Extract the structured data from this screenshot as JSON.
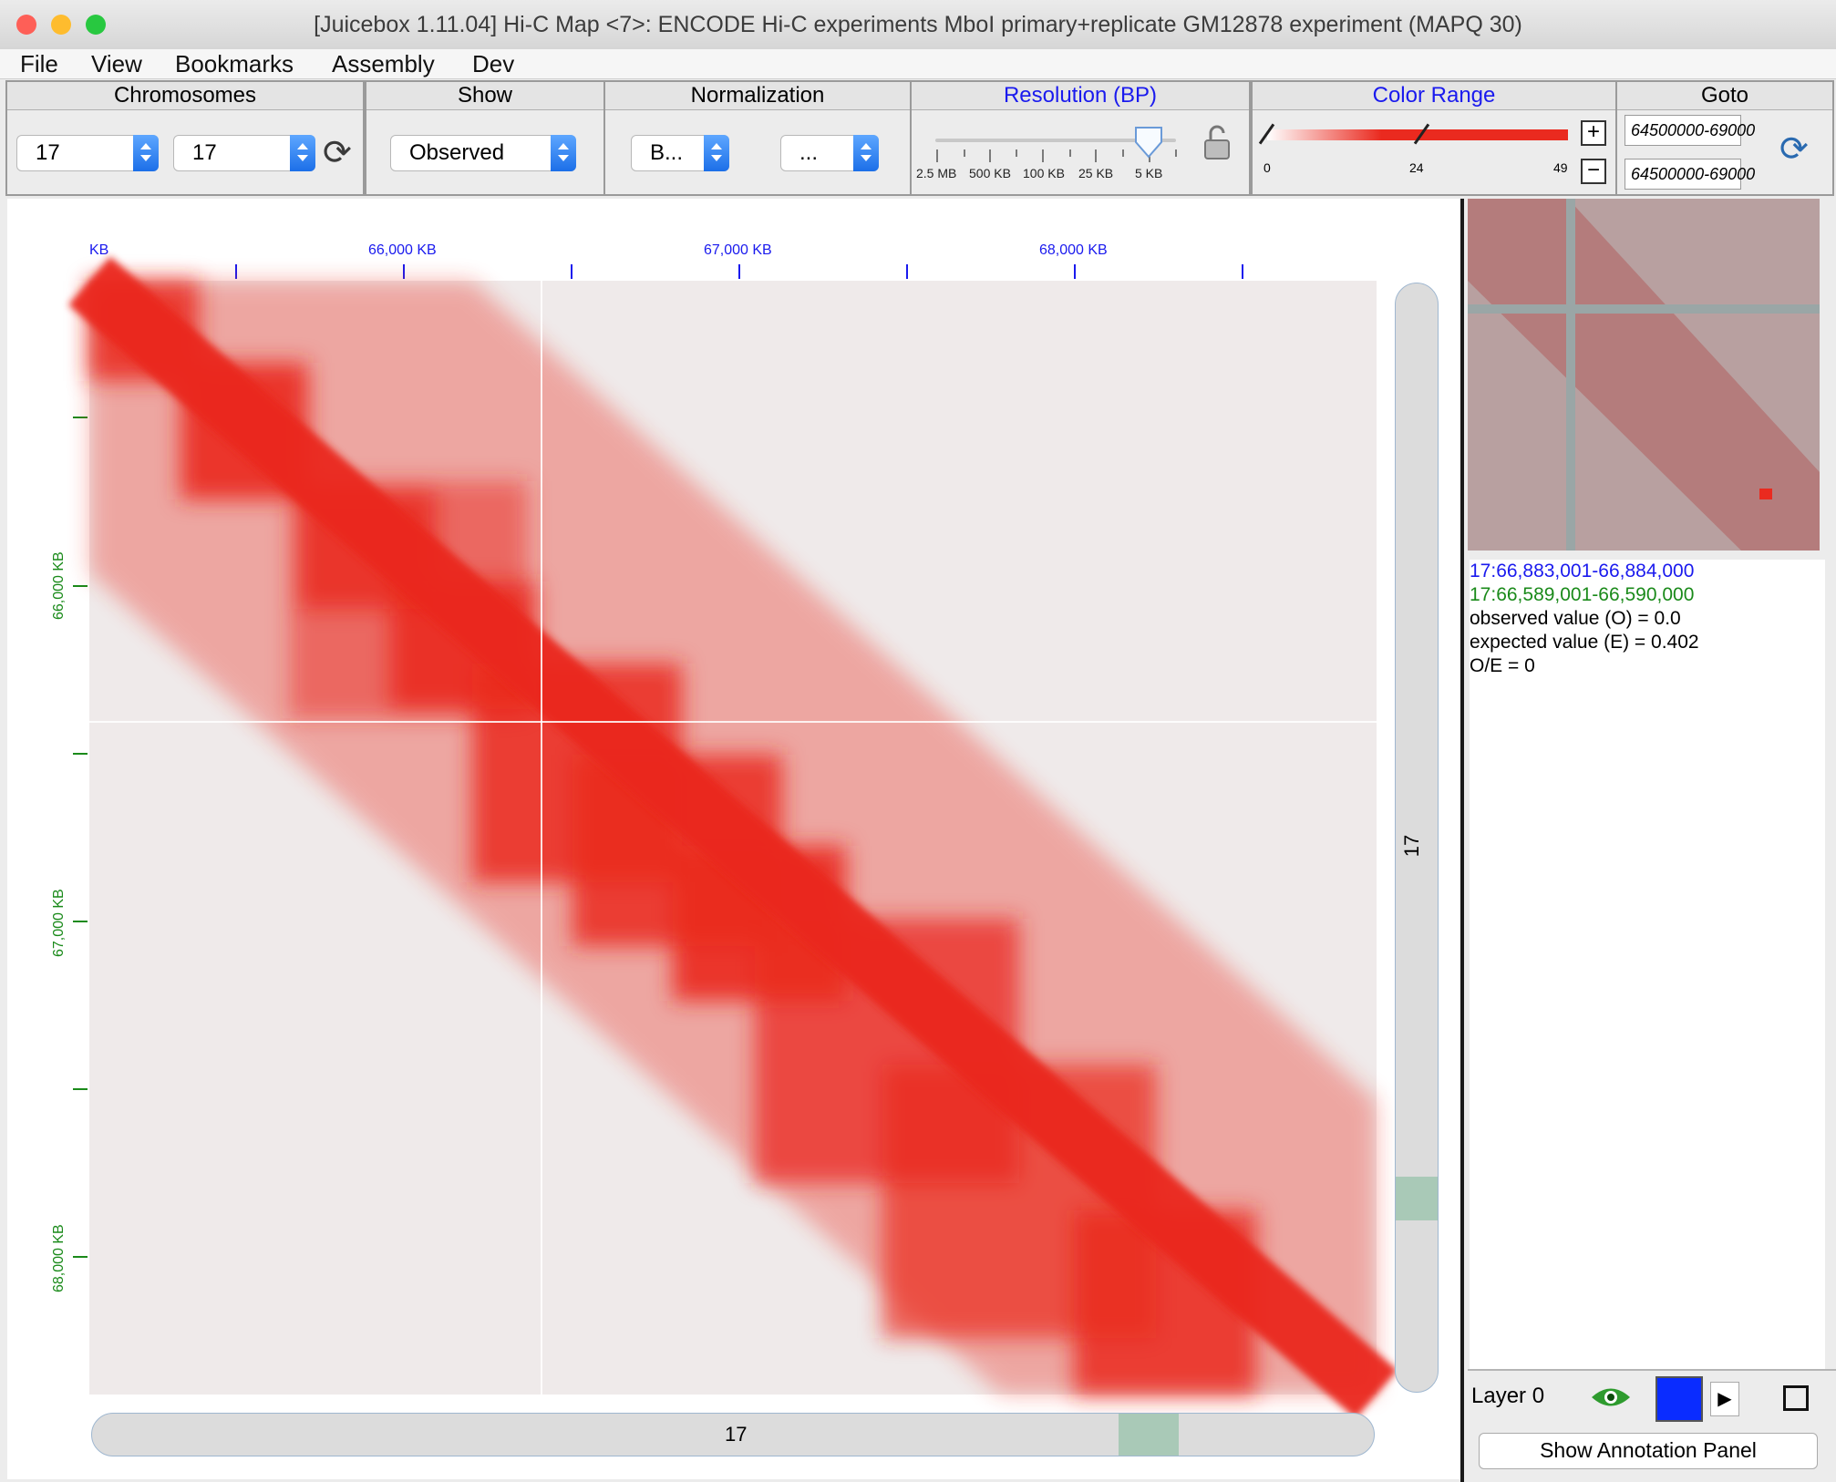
{
  "window": {
    "title": "[Juicebox 1.11.04] Hi-C Map <7>:   ENCODE Hi-C experiments MboI primary+replicate GM12878 experiment (MAPQ 30)",
    "traffic_colors": [
      "#fe5f57",
      "#febc2e",
      "#28c840"
    ]
  },
  "menu": [
    "File",
    "View",
    "Bookmarks",
    "Assembly",
    "Dev"
  ],
  "toolbar": {
    "chromosomes": {
      "label": "Chromosomes",
      "chr1": "17",
      "chr2": "17"
    },
    "show": {
      "label": "Show",
      "value": "Observed"
    },
    "normalization": {
      "label": "Normalization",
      "value1": "B...",
      "value2": "..."
    },
    "resolution": {
      "label": "Resolution (BP)",
      "ticks": [
        "2.5 MB",
        "500 KB",
        "100 KB",
        "25 KB",
        "5 KB"
      ],
      "selected": "5 KB"
    },
    "color_range": {
      "label": "Color Range",
      "min": "0",
      "mid": "24",
      "max": "49",
      "color": "#ea2a1f"
    },
    "goto": {
      "label": "Goto",
      "field1": "64500000-69000",
      "field2": "64500000-69000"
    }
  },
  "map": {
    "top_axis": {
      "labels": [
        "KB",
        "66,000 KB",
        "67,000 KB",
        "68,000 KB"
      ],
      "color": "#1a1aee"
    },
    "left_axis": {
      "labels": [
        "66,000 KB",
        "67,000 KB",
        "68,000 KB"
      ],
      "color": "#1a8a1a"
    },
    "chrom_label_vertical": "17",
    "chrom_label_horizontal": "17",
    "map_color": "#ea2a1f",
    "crosshair_color": "#ffffff"
  },
  "info": {
    "coord_x": "17:66,883,001-66,884,000",
    "coord_y": "17:66,589,001-66,590,000",
    "observed": "observed value (O) = 0.0",
    "expected": "expected value (E) = 0.402",
    "oe": "O/E = 0",
    "coord_x_color": "#1a1aee",
    "coord_y_color": "#1a8a1a"
  },
  "layer": {
    "name": "Layer 0",
    "color": "#0a2cff"
  },
  "annotation_button": "Show Annotation Panel"
}
